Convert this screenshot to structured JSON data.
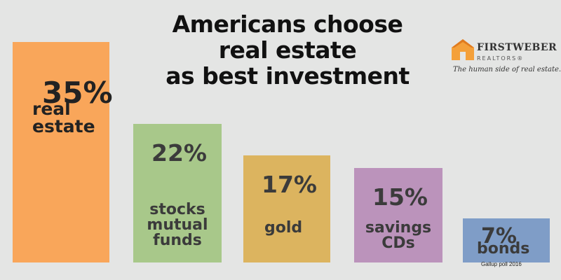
{
  "title_lines": [
    "Americans choose",
    "real estate",
    "as best investment"
  ],
  "logo": {
    "name": "FIRSTWEBER",
    "sub": "REALTORS®",
    "tagline": "The human side of real estate."
  },
  "source": "Gallup poll 2016",
  "colors": {
    "real_estate": "#f9a65a",
    "stocks": "#a8c88a",
    "gold": "#dcb45f",
    "savings": "#bb93bb",
    "bonds": "#7f9dc7"
  },
  "chart_data": {
    "type": "bar",
    "title": "Americans choose real estate as best investment",
    "categories": [
      "real estate",
      "stocks mutual funds",
      "gold",
      "savings CDs",
      "bonds"
    ],
    "values": [
      35,
      22,
      17,
      15,
      7
    ],
    "value_labels": [
      "35%",
      "22%",
      "17%",
      "15%",
      "7%"
    ],
    "category_labels": [
      "real\nestate",
      "stocks\nmutual\nfunds",
      "gold",
      "savings\nCDs",
      "bonds"
    ],
    "unit": "%",
    "xlabel": "",
    "ylabel": "",
    "grid": false,
    "legend": "none"
  }
}
